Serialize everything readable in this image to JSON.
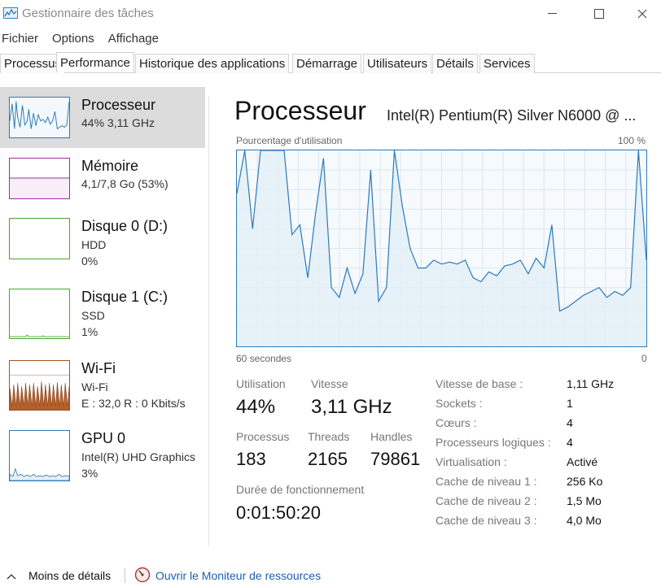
{
  "window": {
    "title": "Gestionnaire des tâches",
    "icon": "task-manager-icon"
  },
  "menu": [
    "Fichier",
    "Options",
    "Affichage"
  ],
  "tabs": [
    "Processus",
    "Performance",
    "Historique des applications",
    "Démarrage",
    "Utilisateurs",
    "Détails",
    "Services"
  ],
  "active_tab": "Performance",
  "sidebar": {
    "items": [
      {
        "title": "Processeur",
        "line1": "44% 3,11 GHz",
        "line2": "",
        "color": "#2c7ab8"
      },
      {
        "title": "Mémoire",
        "line1": "4,1/7,8 Go (53%)",
        "line2": "",
        "color": "#a12aa6"
      },
      {
        "title": "Disque 0 (D:)",
        "line1": "HDD",
        "line2": "0%",
        "color": "#4aa62a"
      },
      {
        "title": "Disque 1 (C:)",
        "line1": "SSD",
        "line2": "1%",
        "color": "#4aa62a"
      },
      {
        "title": "Wi-Fi",
        "line1": "Wi-Fi",
        "line2": "E : 32,0 R : 0 Kbits/s",
        "color": "#a0522d"
      },
      {
        "title": "GPU 0",
        "line1": "Intel(R) UHD Graphics",
        "line2": "3%",
        "color": "#2c7ab8"
      }
    ]
  },
  "main": {
    "title": "Processeur",
    "model": "Intel(R) Pentium(R) Silver N6000 @ ...",
    "graph": {
      "ylabel": "Pourcentage d'utilisation",
      "ymax_label": "100 %",
      "xmin_label": "60 secondes",
      "xmax_label": "0"
    },
    "stats": {
      "utilisation_label": "Utilisation",
      "utilisation": "44%",
      "vitesse_label": "Vitesse",
      "vitesse": "3,11 GHz",
      "processus_label": "Processus",
      "processus": "183",
      "threads_label": "Threads",
      "threads": "2165",
      "handles_label": "Handles",
      "handles": "79861",
      "uptime_label": "Durée de fonctionnement",
      "uptime": "0:01:50:20"
    },
    "info": [
      {
        "label": "Vitesse de base :",
        "value": "1,11 GHz"
      },
      {
        "label": "Sockets :",
        "value": "1"
      },
      {
        "label": "Cœurs :",
        "value": "4"
      },
      {
        "label": "Processeurs logiques :",
        "value": "4"
      },
      {
        "label": "Virtualisation :",
        "value": "Activé"
      },
      {
        "label": "Cache de niveau 1 :",
        "value": "256 Ko"
      },
      {
        "label": "Cache de niveau 2 :",
        "value": "1,5 Mo"
      },
      {
        "label": "Cache de niveau 3 :",
        "value": "4,0 Mo"
      }
    ]
  },
  "footer": {
    "less_details": "Moins de détails",
    "resource_monitor": "Ouvrir le Moniteur de ressources"
  },
  "chart_data": {
    "type": "area",
    "x_range": [
      60,
      0
    ],
    "ylim": [
      0,
      100
    ],
    "grid": true,
    "values": [
      78,
      100,
      60,
      100,
      100,
      100,
      100,
      57,
      62,
      35,
      68,
      96,
      30,
      25,
      40,
      27,
      37,
      90,
      23,
      30,
      100,
      72,
      50,
      40,
      40,
      44,
      42,
      43,
      42,
      44,
      35,
      33,
      38,
      36,
      41,
      42,
      44,
      37,
      45,
      40,
      62,
      18,
      20,
      23,
      26,
      28,
      30,
      25,
      28,
      26,
      30,
      100,
      44
    ]
  }
}
